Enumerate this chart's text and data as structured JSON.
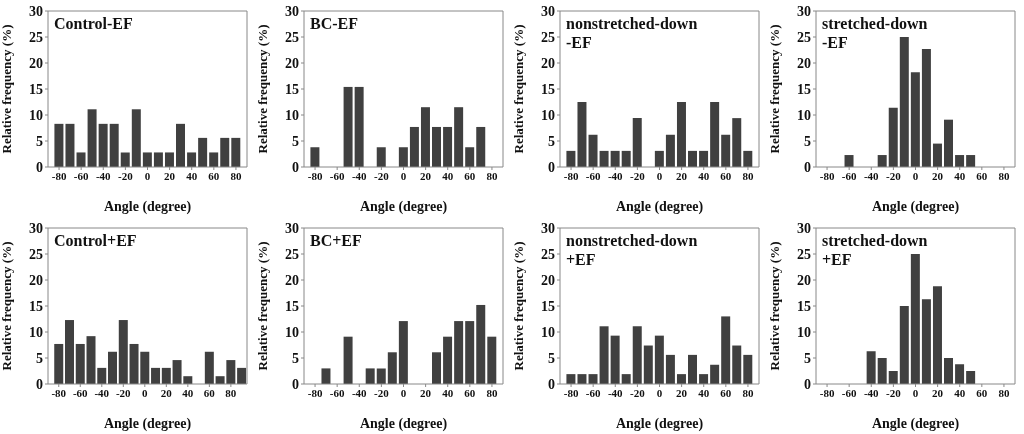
{
  "chart_data": [
    {
      "type": "histogram",
      "title": "Control-EF",
      "xlabel": "Angle (degree)",
      "ylabel": "Relative frequency (%)",
      "bins": [
        -85,
        -75,
        -65,
        -55,
        -45,
        -35,
        -25,
        -15,
        -5,
        5,
        15,
        25,
        35,
        45,
        55,
        65,
        75,
        85
      ],
      "values": [
        8.3,
        8.3,
        2.8,
        11.1,
        8.3,
        8.3,
        2.8,
        11.1,
        2.8,
        2.8,
        2.8,
        8.3,
        2.8,
        5.6,
        2.8,
        5.6,
        5.6
      ],
      "color": "#404040",
      "xlim": [
        -90,
        90
      ],
      "xticks": [
        -80,
        -60,
        -40,
        -20,
        0,
        20,
        40,
        60,
        80
      ],
      "ylim": [
        0,
        30
      ],
      "yticks": [
        0,
        5,
        10,
        15,
        20,
        25,
        30
      ]
    },
    {
      "type": "histogram",
      "title": "BC-EF",
      "xlabel": "Angle (degree)",
      "ylabel": "Relative frequency (%)",
      "bins": [
        -85,
        -75,
        -65,
        -55,
        -45,
        -35,
        -25,
        -15,
        -5,
        5,
        15,
        25,
        35,
        45,
        55,
        65,
        75,
        85
      ],
      "values": [
        3.8,
        0,
        0,
        15.4,
        15.4,
        0,
        3.8,
        0,
        3.8,
        7.7,
        11.5,
        7.7,
        7.7,
        11.5,
        3.8,
        7.7,
        0
      ],
      "color": "#404040",
      "xlim": [
        -90,
        90
      ],
      "xticks": [
        -80,
        -60,
        -40,
        -20,
        0,
        20,
        40,
        60,
        80
      ],
      "ylim": [
        0,
        30
      ],
      "yticks": [
        0,
        5,
        10,
        15,
        20,
        25,
        30
      ]
    },
    {
      "type": "histogram",
      "title": "nonstretched-down\n-EF",
      "xlabel": "Angle (degree)",
      "ylabel": "Relative frequency (%)",
      "bins": [
        -85,
        -75,
        -65,
        -55,
        -45,
        -35,
        -25,
        -15,
        -5,
        5,
        15,
        25,
        35,
        45,
        55,
        65,
        75,
        85
      ],
      "values": [
        3.1,
        12.5,
        6.2,
        3.1,
        3.1,
        3.1,
        9.4,
        0,
        3.1,
        6.2,
        12.5,
        3.1,
        3.1,
        12.5,
        6.2,
        9.4,
        3.1
      ],
      "color": "#404040",
      "xlim": [
        -90,
        90
      ],
      "xticks": [
        -80,
        -60,
        -40,
        -20,
        0,
        20,
        40,
        60,
        80
      ],
      "ylim": [
        0,
        30
      ],
      "yticks": [
        0,
        5,
        10,
        15,
        20,
        25,
        30
      ]
    },
    {
      "type": "histogram",
      "title": "stretched-down\n-EF",
      "xlabel": "Angle (degree)",
      "ylabel": "Relative frequency (%)",
      "bins": [
        -85,
        -75,
        -65,
        -55,
        -45,
        -35,
        -25,
        -15,
        -5,
        5,
        15,
        25,
        35,
        45,
        55,
        65,
        75,
        85
      ],
      "values": [
        0,
        0,
        2.3,
        0,
        0,
        2.3,
        11.4,
        25,
        18.2,
        22.7,
        4.5,
        9.1,
        2.3,
        2.3,
        0,
        0,
        0
      ],
      "color": "#404040",
      "xlim": [
        -90,
        90
      ],
      "xticks": [
        -80,
        -60,
        -40,
        -20,
        0,
        20,
        40,
        60,
        80
      ],
      "ylim": [
        0,
        30
      ],
      "yticks": [
        0,
        5,
        10,
        15,
        20,
        25,
        30
      ]
    },
    {
      "type": "histogram",
      "title": "Control+EF",
      "xlabel": "Angle (degree)",
      "ylabel": "Relative frequency (%)",
      "bins": [
        -85,
        -75,
        -65,
        -55,
        -45,
        -35,
        -25,
        -15,
        -5,
        5,
        15,
        25,
        35,
        45,
        55,
        65,
        75,
        85,
        95
      ],
      "values": [
        7.7,
        12.3,
        7.7,
        9.2,
        3.1,
        6.2,
        12.3,
        7.7,
        6.2,
        3.1,
        3.1,
        4.6,
        1.5,
        0,
        6.2,
        1.5,
        4.6,
        3.1
      ],
      "color": "#404040",
      "xlim": [
        -90,
        95
      ],
      "xticks": [
        -80,
        -60,
        -40,
        -20,
        0,
        20,
        40,
        60,
        80
      ],
      "ylim": [
        0,
        30
      ],
      "yticks": [
        0,
        5,
        10,
        15,
        20,
        25,
        30
      ]
    },
    {
      "type": "histogram",
      "title": "BC+EF",
      "xlabel": "Angle (degree)",
      "ylabel": "Relative frequency (%)",
      "bins": [
        -85,
        -75,
        -65,
        -55,
        -45,
        -35,
        -25,
        -15,
        -5,
        5,
        15,
        25,
        35,
        45,
        55,
        65,
        75,
        85
      ],
      "values": [
        0,
        3.0,
        0,
        9.1,
        0,
        3.0,
        3.0,
        6.1,
        12.1,
        0,
        0,
        6.1,
        9.1,
        12.1,
        12.1,
        15.2,
        9.1
      ],
      "color": "#404040",
      "xlim": [
        -90,
        90
      ],
      "xticks": [
        -80,
        -60,
        -40,
        -20,
        0,
        20,
        40,
        60,
        80
      ],
      "ylim": [
        0,
        30
      ],
      "yticks": [
        0,
        5,
        10,
        15,
        20,
        25,
        30
      ]
    },
    {
      "type": "histogram",
      "title": "nonstretched-down\n+EF",
      "xlabel": "Angle (degree)",
      "ylabel": "Relative frequency (%)",
      "bins": [
        -85,
        -75,
        -65,
        -55,
        -45,
        -35,
        -25,
        -15,
        -5,
        5,
        15,
        25,
        35,
        45,
        55,
        65,
        75,
        85
      ],
      "values": [
        1.9,
        1.9,
        1.9,
        11.1,
        9.3,
        1.9,
        11.1,
        7.4,
        9.3,
        5.6,
        1.9,
        5.6,
        1.9,
        3.7,
        13.0,
        7.4,
        5.6
      ],
      "color": "#404040",
      "xlim": [
        -90,
        90
      ],
      "xticks": [
        -80,
        -60,
        -40,
        -20,
        0,
        20,
        40,
        60,
        80
      ],
      "ylim": [
        0,
        30
      ],
      "yticks": [
        0,
        5,
        10,
        15,
        20,
        25,
        30
      ]
    },
    {
      "type": "histogram",
      "title": "stretched-down\n+EF",
      "xlabel": "Angle (degree)",
      "ylabel": "Relative frequency (%)",
      "bins": [
        -85,
        -75,
        -65,
        -55,
        -45,
        -35,
        -25,
        -15,
        -5,
        5,
        15,
        25,
        35,
        45,
        55,
        65,
        75,
        85
      ],
      "values": [
        0,
        0,
        0,
        0,
        6.3,
        5.0,
        2.5,
        15.0,
        25.0,
        16.3,
        18.8,
        5.0,
        3.8,
        2.5,
        0,
        0,
        0
      ],
      "color": "#404040",
      "xlim": [
        -90,
        90
      ],
      "xticks": [
        -80,
        -60,
        -40,
        -20,
        0,
        20,
        40,
        60,
        80
      ],
      "ylim": [
        0,
        30
      ],
      "yticks": [
        0,
        5,
        10,
        15,
        20,
        25,
        30
      ]
    }
  ]
}
